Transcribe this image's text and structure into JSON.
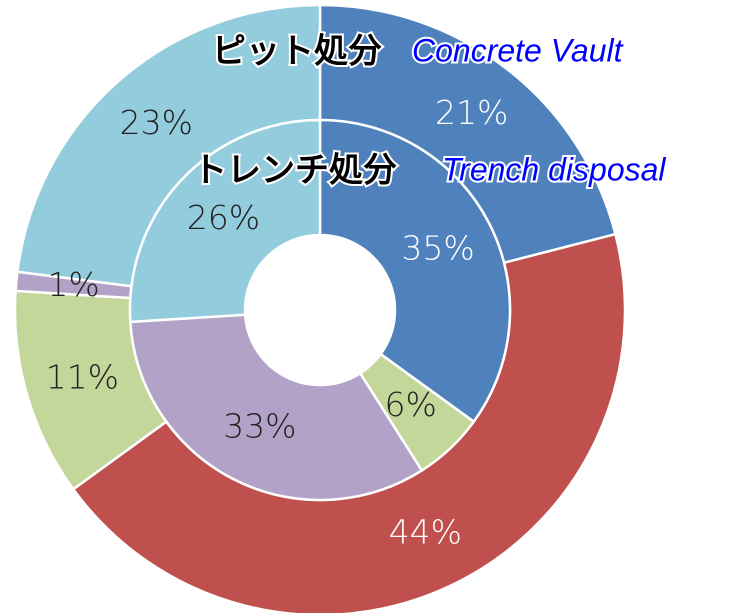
{
  "chart_data": [
    {
      "type": "donut",
      "title": "ピット処分",
      "subtitle": "Concrete Vault",
      "values": [
        21,
        44,
        11,
        1,
        23
      ],
      "value_labels": [
        "21%",
        "44%",
        "11%",
        "1%",
        "23%"
      ],
      "colors": [
        "#4f81bd",
        "#c0504d",
        "#c4d79b",
        "#b3a2c7",
        "#93cddd"
      ]
    },
    {
      "type": "donut",
      "title": "トレンチ処分",
      "subtitle": "Trench disposal",
      "values": [
        35,
        6,
        33,
        26
      ],
      "value_labels": [
        "35%",
        "6%",
        "33%",
        "26%"
      ],
      "colors": [
        "#4f81bd",
        "#c4d79b",
        "#b3a2c7",
        "#93cddd"
      ]
    }
  ]
}
